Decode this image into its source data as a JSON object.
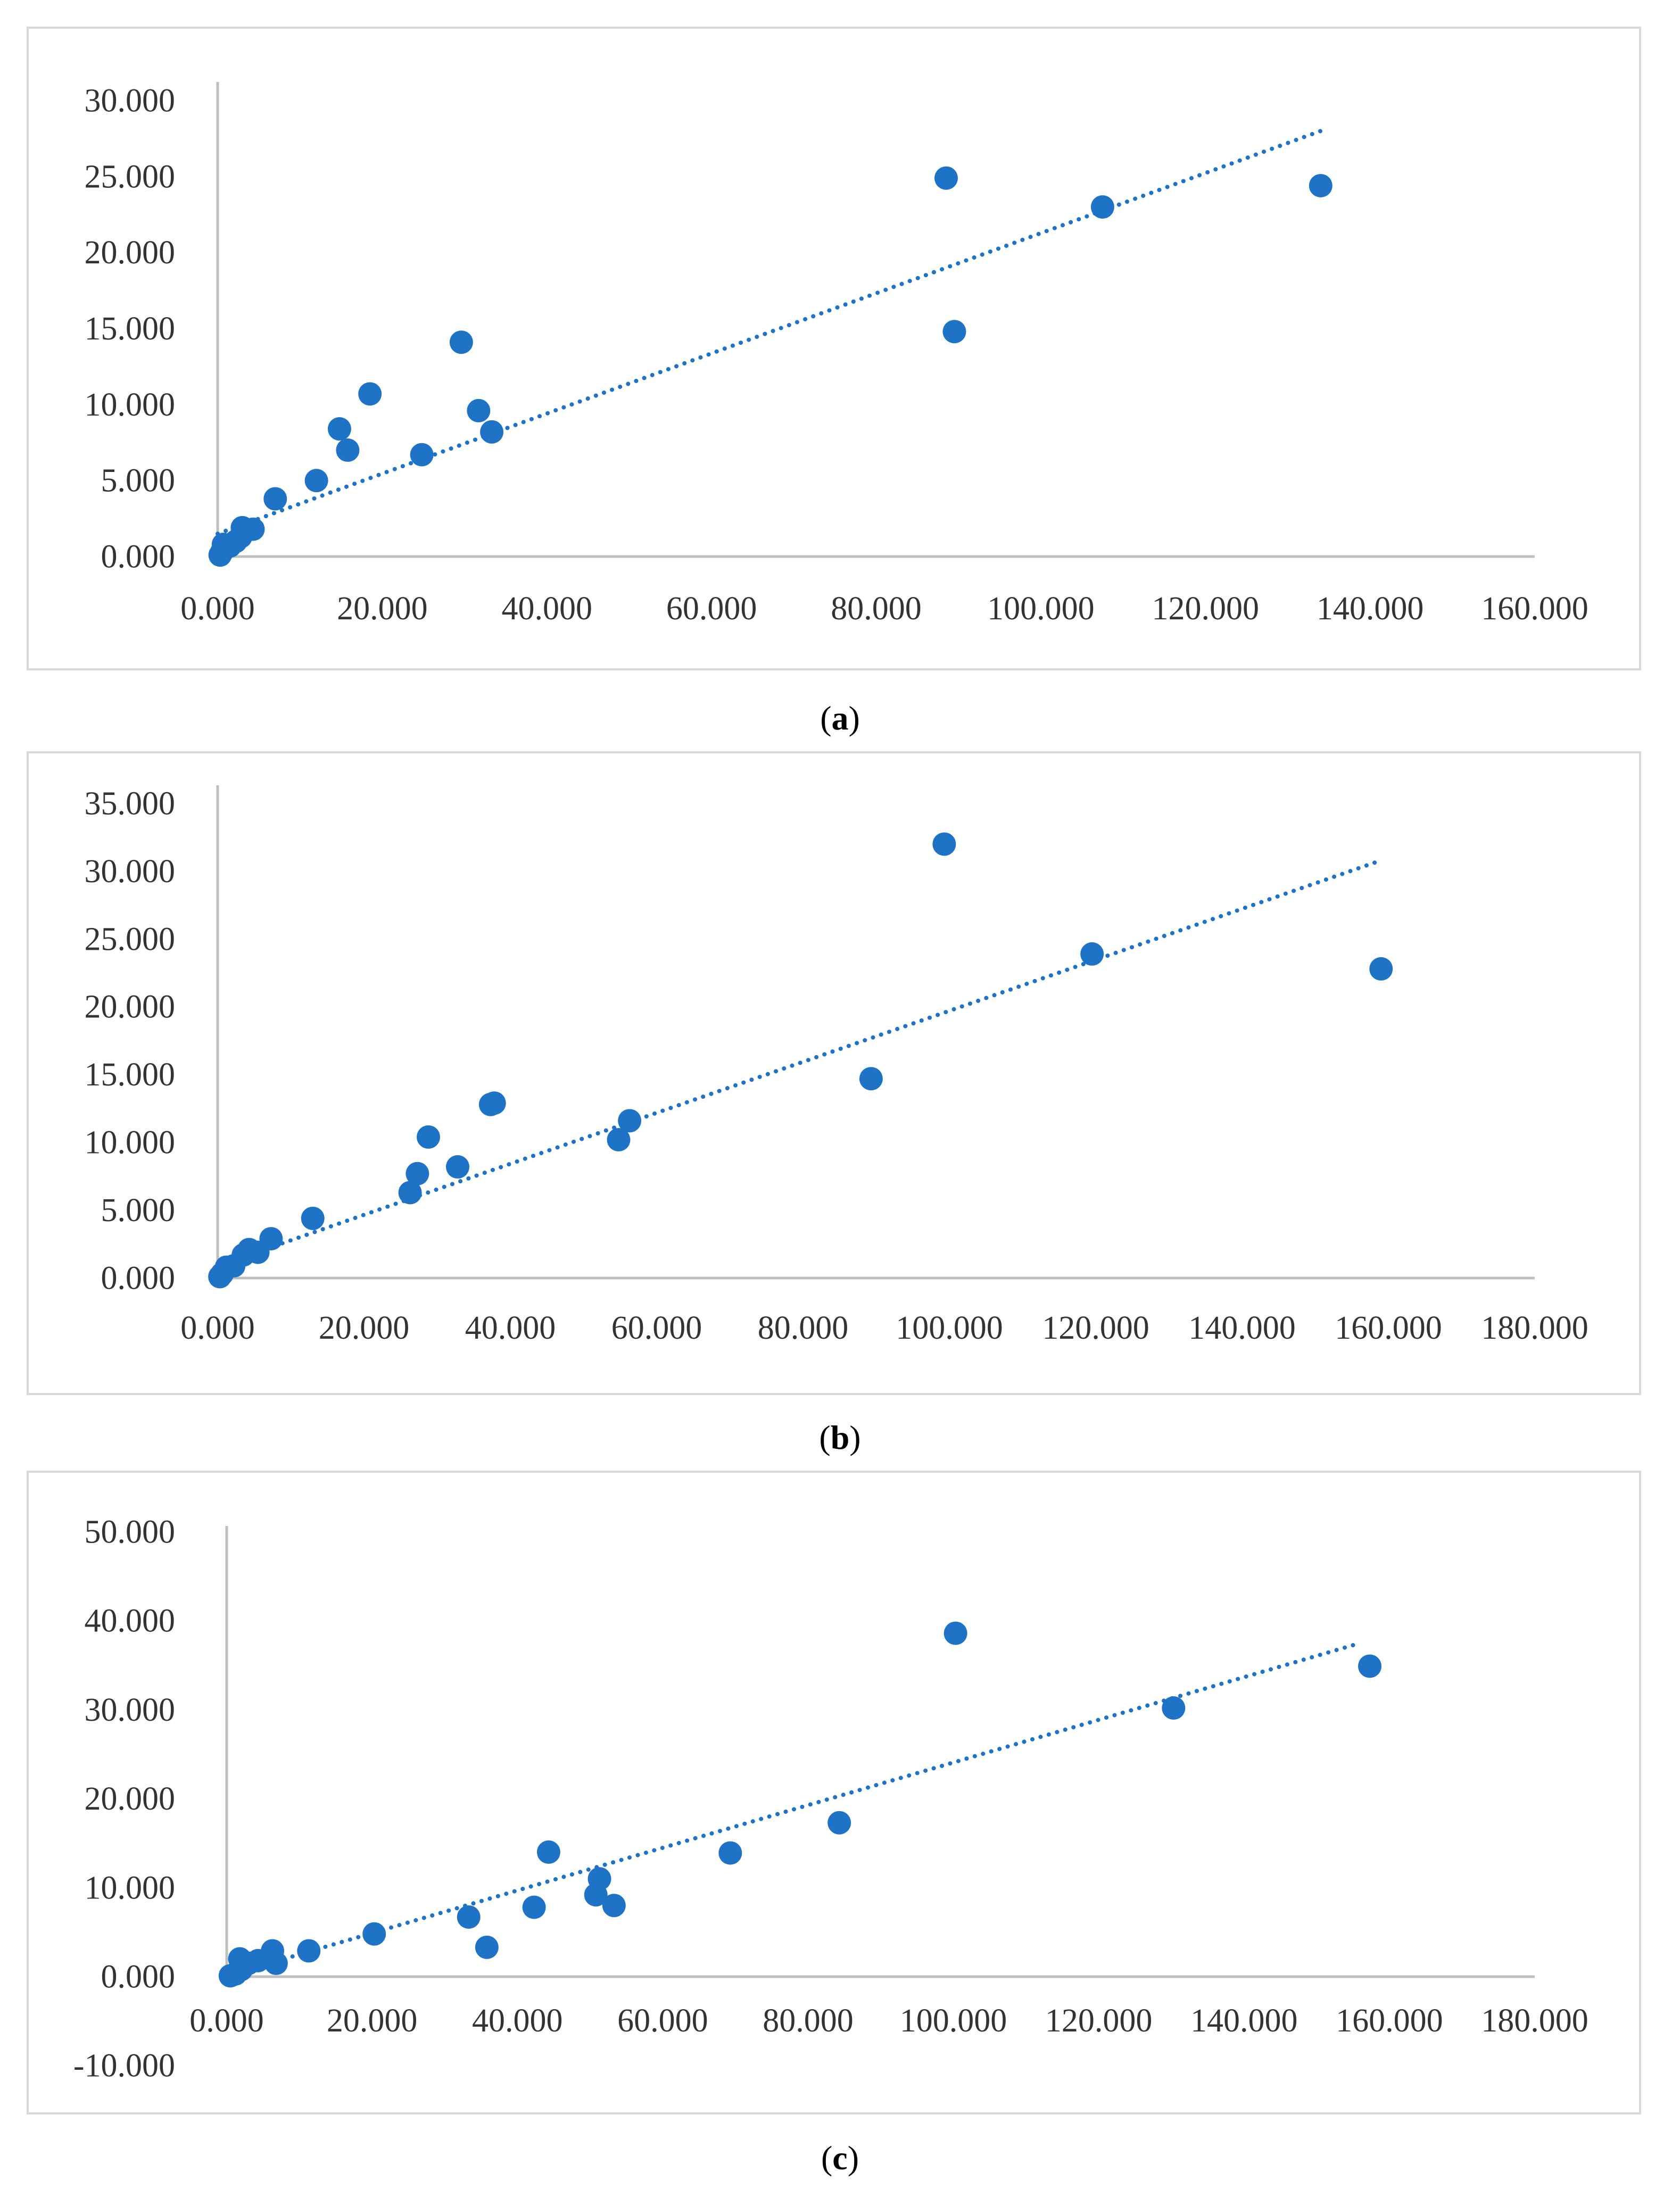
{
  "colors": {
    "marker": "#1f73c7",
    "trendline": "#1f73c7",
    "axis": "#bfbfbf",
    "tick_text": "#333333",
    "border": "#d9d9d9"
  },
  "chart_data": [
    {
      "type": "scatter",
      "caption_letter": "a",
      "xlim": [
        0,
        160000
      ],
      "ylim": [
        0,
        30000
      ],
      "x_ticks": [
        0,
        20000,
        40000,
        60000,
        80000,
        100000,
        120000,
        140000,
        160000
      ],
      "y_ticks": [
        0,
        5000,
        10000,
        15000,
        20000,
        25000,
        30000
      ],
      "x_tick_labels": [
        "0.000",
        "20.000",
        "40.000",
        "60.000",
        "80.000",
        "100.000",
        "120.000",
        "140.000",
        "160.000"
      ],
      "y_tick_labels": [
        "0.000",
        "5.000",
        "10.000",
        "15.000",
        "20.000",
        "25.000",
        "30.000"
      ],
      "points": [
        {
          "x": 300,
          "y": 100
        },
        {
          "x": 500,
          "y": 300
        },
        {
          "x": 700,
          "y": 800
        },
        {
          "x": 1500,
          "y": 700
        },
        {
          "x": 2200,
          "y": 1000
        },
        {
          "x": 2800,
          "y": 1300
        },
        {
          "x": 3000,
          "y": 1900
        },
        {
          "x": 4300,
          "y": 1800
        },
        {
          "x": 7000,
          "y": 3800
        },
        {
          "x": 12000,
          "y": 5000
        },
        {
          "x": 14800,
          "y": 8400
        },
        {
          "x": 15800,
          "y": 7000
        },
        {
          "x": 18500,
          "y": 10700
        },
        {
          "x": 24800,
          "y": 6700
        },
        {
          "x": 29600,
          "y": 14100
        },
        {
          "x": 31700,
          "y": 9600
        },
        {
          "x": 33300,
          "y": 8200
        },
        {
          "x": 88500,
          "y": 24900
        },
        {
          "x": 89500,
          "y": 14800
        },
        {
          "x": 107500,
          "y": 23000
        },
        {
          "x": 134000,
          "y": 24400
        }
      ],
      "trendline": {
        "type": "linear",
        "from": [
          0,
          1500
        ],
        "to": [
          134000,
          28000
        ]
      }
    },
    {
      "type": "scatter",
      "caption_letter": "b",
      "xlim": [
        0,
        180000
      ],
      "ylim": [
        0,
        35000
      ],
      "x_ticks": [
        0,
        20000,
        40000,
        60000,
        80000,
        100000,
        120000,
        140000,
        160000,
        180000
      ],
      "y_ticks": [
        0,
        5000,
        10000,
        15000,
        20000,
        25000,
        30000,
        35000
      ],
      "x_tick_labels": [
        "0.000",
        "20.000",
        "40.000",
        "60.000",
        "80.000",
        "100.000",
        "120.000",
        "140.000",
        "160.000",
        "180.000"
      ],
      "y_tick_labels": [
        "0.000",
        "5.000",
        "10.000",
        "15.000",
        "20.000",
        "25.000",
        "30.000",
        "35.000"
      ],
      "points": [
        {
          "x": 300,
          "y": 100
        },
        {
          "x": 600,
          "y": 300
        },
        {
          "x": 1200,
          "y": 800
        },
        {
          "x": 2200,
          "y": 900
        },
        {
          "x": 3500,
          "y": 1700
        },
        {
          "x": 4300,
          "y": 2100
        },
        {
          "x": 5500,
          "y": 1900
        },
        {
          "x": 7300,
          "y": 2900
        },
        {
          "x": 13000,
          "y": 4400
        },
        {
          "x": 26300,
          "y": 6300
        },
        {
          "x": 27300,
          "y": 7700
        },
        {
          "x": 28800,
          "y": 10400
        },
        {
          "x": 32800,
          "y": 8200
        },
        {
          "x": 37300,
          "y": 12800
        },
        {
          "x": 37800,
          "y": 12900
        },
        {
          "x": 54800,
          "y": 10200
        },
        {
          "x": 56300,
          "y": 11600
        },
        {
          "x": 89300,
          "y": 14700
        },
        {
          "x": 99300,
          "y": 32000
        },
        {
          "x": 119500,
          "y": 23900
        },
        {
          "x": 159000,
          "y": 22800
        }
      ],
      "trendline": {
        "type": "linear",
        "from": [
          0,
          900
        ],
        "to": [
          159000,
          30800
        ]
      }
    },
    {
      "type": "scatter",
      "caption_letter": "c",
      "xlim": [
        0,
        180000
      ],
      "ylim": [
        -10000,
        50000
      ],
      "x_ticks": [
        0,
        20000,
        40000,
        60000,
        80000,
        100000,
        120000,
        140000,
        160000,
        180000
      ],
      "y_ticks": [
        -10000,
        0,
        10000,
        20000,
        30000,
        40000,
        50000
      ],
      "x_tick_labels": [
        "0.000",
        "20.000",
        "40.000",
        "60.000",
        "80.000",
        "100.000",
        "120.000",
        "140.000",
        "160.000",
        "180.000"
      ],
      "y_tick_labels": [
        "-10.000",
        "0.000",
        "10.000",
        "20.000",
        "30.000",
        "40.000",
        "50.000"
      ],
      "points": [
        {
          "x": 500,
          "y": 100
        },
        {
          "x": 1200,
          "y": 300
        },
        {
          "x": 2000,
          "y": 800
        },
        {
          "x": 1800,
          "y": 2000
        },
        {
          "x": 3000,
          "y": 1500
        },
        {
          "x": 4300,
          "y": 1800
        },
        {
          "x": 6300,
          "y": 2900
        },
        {
          "x": 6800,
          "y": 1500
        },
        {
          "x": 11300,
          "y": 2900
        },
        {
          "x": 20300,
          "y": 4800
        },
        {
          "x": 33300,
          "y": 6700
        },
        {
          "x": 35800,
          "y": 3300
        },
        {
          "x": 42300,
          "y": 7800
        },
        {
          "x": 44300,
          "y": 14000
        },
        {
          "x": 50800,
          "y": 9200
        },
        {
          "x": 51300,
          "y": 11000
        },
        {
          "x": 53300,
          "y": 8000
        },
        {
          "x": 69300,
          "y": 13900
        },
        {
          "x": 84300,
          "y": 17300
        },
        {
          "x": 100300,
          "y": 38600
        },
        {
          "x": 130300,
          "y": 30200
        },
        {
          "x": 157300,
          "y": 34900
        }
      ],
      "trendline": {
        "type": "linear",
        "from": [
          0,
          100
        ],
        "to": [
          156000,
          37500
        ]
      }
    }
  ],
  "captions": {
    "a": {
      "open": "(",
      "letter": "a",
      "close": ")"
    },
    "b": {
      "open": "(",
      "letter": "b",
      "close": ")"
    },
    "c": {
      "open": "(",
      "letter": "c",
      "close": ")"
    }
  }
}
